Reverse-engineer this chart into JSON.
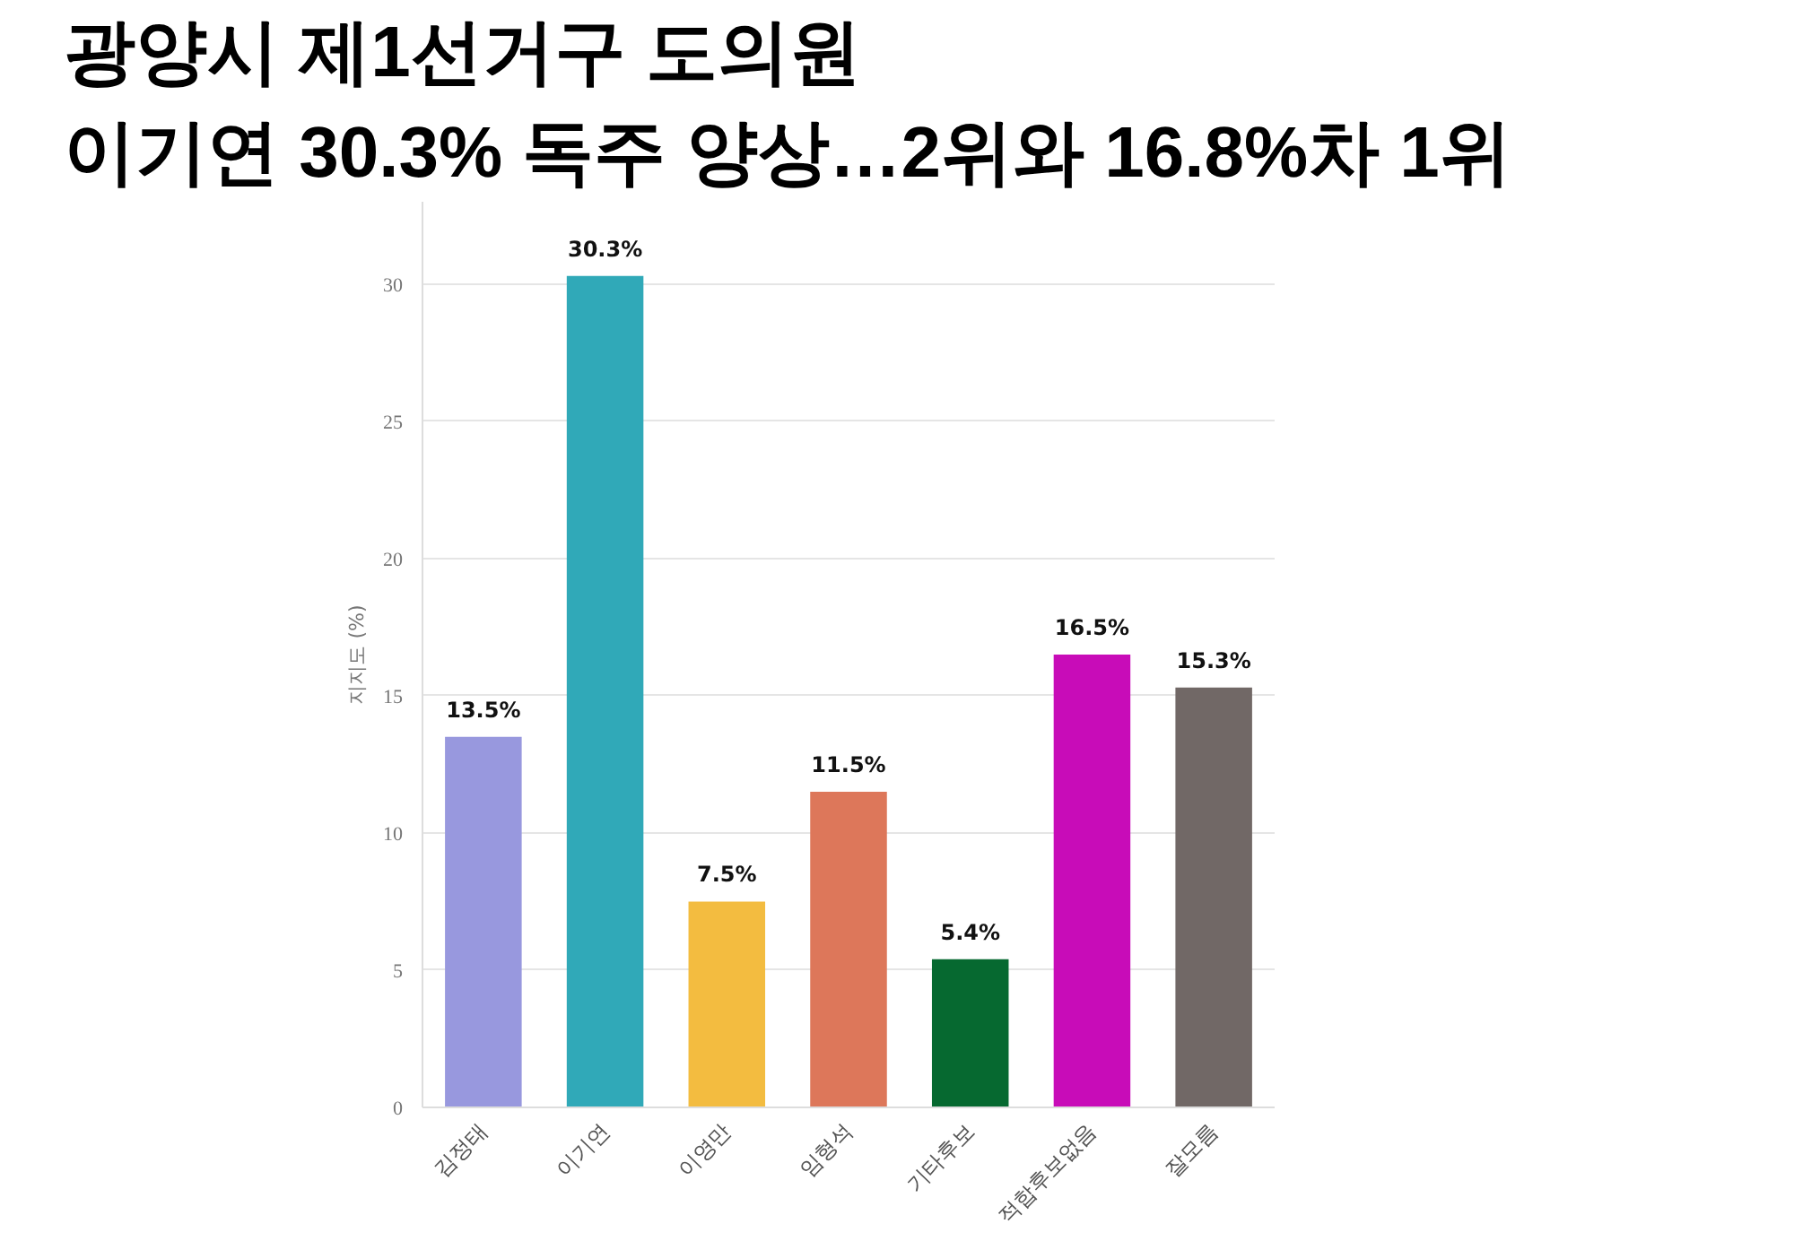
{
  "chart_data": {
    "type": "bar",
    "title": "광양시 제1선거구 도의원",
    "subtitle": "이기연 30.3% 독주 양상…2위와 16.8%차 1위",
    "ylabel": "지지도 (%)",
    "categories": [
      "김정태",
      "이기연",
      "이영만",
      "임형석",
      "기타후보",
      "적합후보없음",
      "잘모름"
    ],
    "values": [
      13.5,
      30.3,
      7.5,
      11.5,
      5.4,
      16.5,
      15.3
    ],
    "colors": [
      "#9898de",
      "#30a9b8",
      "#f3bc40",
      "#dd775a",
      "#066930",
      "#c80cb8",
      "#716866"
    ],
    "value_labels": [
      "13.5%",
      "30.3%",
      "7.5%",
      "11.5%",
      "5.4%",
      "16.5%",
      "15.3%"
    ],
    "ylim": [
      0,
      33
    ],
    "yticks": [
      0,
      5,
      10,
      15,
      20,
      25,
      30
    ],
    "grid": "y"
  }
}
